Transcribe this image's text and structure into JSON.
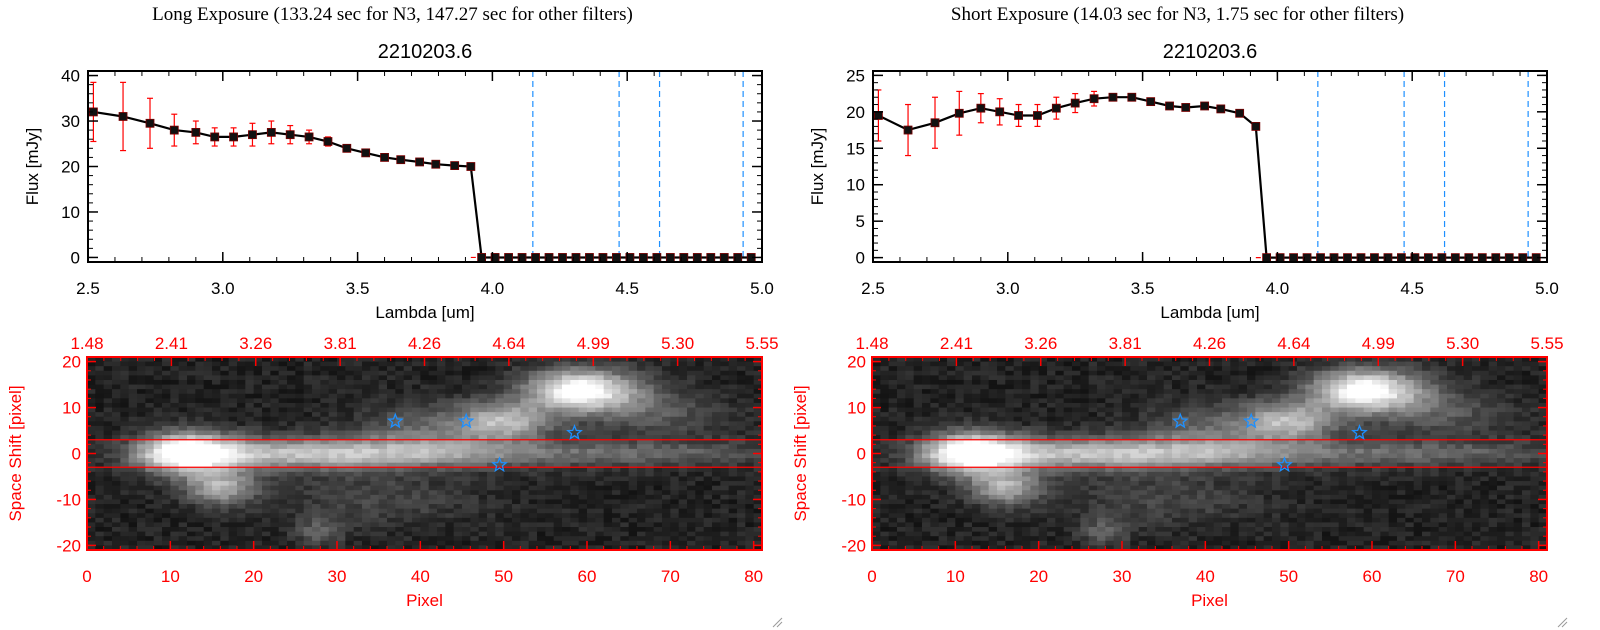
{
  "chart_data": [
    {
      "panel": "left",
      "exposure_title": "Long Exposure (133.24 sec for N3, 147.27 sec for other filters)",
      "spectrum": {
        "type": "line",
        "title": "2210203.6",
        "xlabel": "Lambda [um]",
        "ylabel": "Flux [mJy]",
        "xlim": [
          2.5,
          5.0
        ],
        "ylim": [
          -1,
          41
        ],
        "xticks": [
          "2.5",
          "3.0",
          "3.5",
          "4.0",
          "4.5",
          "5.0"
        ],
        "yticks": [
          "0",
          "10",
          "20",
          "30",
          "40"
        ],
        "x": [
          2.52,
          2.63,
          2.73,
          2.82,
          2.9,
          2.97,
          3.04,
          3.11,
          3.18,
          3.25,
          3.32,
          3.39,
          3.46,
          3.53,
          3.6,
          3.66,
          3.73,
          3.79,
          3.86,
          3.92,
          3.96,
          4.01,
          4.06,
          4.11,
          4.16,
          4.21,
          4.26,
          4.31,
          4.36,
          4.41,
          4.46,
          4.51,
          4.56,
          4.61,
          4.66,
          4.71,
          4.76,
          4.81,
          4.86,
          4.91,
          4.96
        ],
        "flux": [
          32.0,
          31.0,
          29.5,
          28.0,
          27.5,
          26.5,
          26.5,
          27.0,
          27.5,
          27.0,
          26.5,
          25.5,
          24.0,
          23.0,
          22.0,
          21.5,
          21.0,
          20.5,
          20.2,
          20.0,
          0,
          0,
          0,
          0,
          0,
          0,
          0,
          0,
          0,
          0,
          0,
          0,
          0,
          0,
          0,
          0,
          0,
          0,
          0,
          0,
          0
        ],
        "flux_err": [
          6.5,
          7.5,
          5.5,
          3.5,
          2.5,
          2.0,
          2.0,
          2.5,
          2.5,
          2.0,
          1.5,
          1.0,
          0.8,
          0.5,
          0.4,
          0.4,
          0.4,
          0.4,
          0.4,
          0.4,
          0,
          0,
          0,
          0,
          0,
          0,
          0,
          0,
          0,
          0,
          0,
          0,
          0,
          0,
          0,
          0,
          0,
          0,
          0,
          0,
          0
        ],
        "vlines": [
          4.15,
          4.47,
          4.62,
          4.93
        ],
        "line_color": "#000000",
        "err_color": "#ff0000",
        "vline_color": "#1e90ff",
        "zero_line_color": "#ff0000"
      },
      "image": {
        "type": "heatmap",
        "xlabel": "Pixel",
        "ylabel": "Space Shift [pixel]",
        "xlim": [
          0,
          81
        ],
        "ylim": [
          -21,
          21
        ],
        "xticks": [
          "0",
          "10",
          "20",
          "30",
          "40",
          "50",
          "60",
          "70",
          "80"
        ],
        "yticks": [
          "-20",
          "-10",
          "0",
          "10",
          "20"
        ],
        "top_ticks": [
          "1.48",
          "2.41",
          "3.26",
          "3.81",
          "4.26",
          "4.64",
          "4.99",
          "5.30",
          "5.55"
        ],
        "hlines": [
          3,
          -3
        ],
        "stars": [
          [
            37,
            7
          ],
          [
            45.5,
            7
          ],
          [
            58.5,
            4.5
          ],
          [
            49.5,
            -2.5
          ]
        ],
        "axis_color": "#ff0000",
        "star_color": "#1e90ff"
      }
    },
    {
      "panel": "right",
      "exposure_title": "Short Exposure (14.03 sec for N3, 1.75 sec for other filters)",
      "spectrum": {
        "type": "line",
        "title": "2210203.6",
        "xlabel": "Lambda [um]",
        "ylabel": "Flux [mJy]",
        "xlim": [
          2.5,
          5.0
        ],
        "ylim": [
          -0.6,
          25.6
        ],
        "xticks": [
          "2.5",
          "3.0",
          "3.5",
          "4.0",
          "4.5",
          "5.0"
        ],
        "yticks": [
          "0",
          "5",
          "10",
          "15",
          "20",
          "25"
        ],
        "x": [
          2.52,
          2.63,
          2.73,
          2.82,
          2.9,
          2.97,
          3.04,
          3.11,
          3.18,
          3.25,
          3.32,
          3.39,
          3.46,
          3.53,
          3.6,
          3.66,
          3.73,
          3.79,
          3.86,
          3.92,
          3.96,
          4.01,
          4.06,
          4.11,
          4.16,
          4.21,
          4.26,
          4.31,
          4.36,
          4.41,
          4.46,
          4.51,
          4.56,
          4.61,
          4.66,
          4.71,
          4.76,
          4.81,
          4.86,
          4.91,
          4.96
        ],
        "flux": [
          19.5,
          17.5,
          18.5,
          19.8,
          20.5,
          20.0,
          19.5,
          19.5,
          20.5,
          21.2,
          21.8,
          22.0,
          22.0,
          21.4,
          20.8,
          20.6,
          20.8,
          20.4,
          19.8,
          18.0,
          0,
          0,
          0,
          0,
          0,
          0,
          0,
          0,
          0,
          0,
          0,
          0,
          0,
          0,
          0,
          0,
          0,
          0,
          0,
          0,
          0
        ],
        "flux_err": [
          3.5,
          3.5,
          3.5,
          3.0,
          2.0,
          1.8,
          1.5,
          1.5,
          1.5,
          1.3,
          1.0,
          0.5,
          0.4,
          0.4,
          0.4,
          0.4,
          0.4,
          0.4,
          0.4,
          0.4,
          0,
          0,
          0,
          0,
          0,
          0,
          0,
          0,
          0,
          0,
          0,
          0,
          0,
          0,
          0,
          0,
          0,
          0,
          0,
          0,
          0
        ],
        "vlines": [
          4.15,
          4.47,
          4.62,
          4.93
        ],
        "line_color": "#000000",
        "err_color": "#ff0000",
        "vline_color": "#1e90ff",
        "zero_line_color": "#ff0000"
      },
      "image": {
        "type": "heatmap",
        "xlabel": "Pixel",
        "ylabel": "Space Shift [pixel]",
        "xlim": [
          0,
          81
        ],
        "ylim": [
          -21,
          21
        ],
        "xticks": [
          "0",
          "10",
          "20",
          "30",
          "40",
          "50",
          "60",
          "70",
          "80"
        ],
        "yticks": [
          "-20",
          "-10",
          "0",
          "10",
          "20"
        ],
        "top_ticks": [
          "1.48",
          "2.41",
          "3.26",
          "3.81",
          "4.26",
          "4.64",
          "4.99",
          "5.30",
          "5.55"
        ],
        "hlines": [
          3,
          -3
        ],
        "stars": [
          [
            37,
            7
          ],
          [
            45.5,
            7
          ],
          [
            58.5,
            4.5
          ],
          [
            49.5,
            -2.5
          ]
        ],
        "axis_color": "#ff0000",
        "star_color": "#1e90ff"
      }
    }
  ]
}
